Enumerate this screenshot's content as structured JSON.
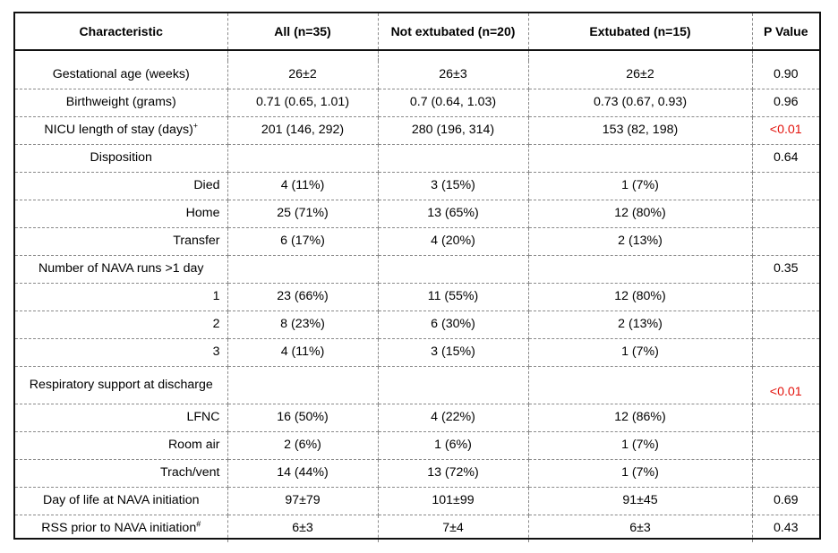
{
  "table": {
    "headers": [
      "Characteristic",
      "All (n=35)",
      "Not extubated (n=20)",
      "Extubated  (n=15)",
      "P Value"
    ],
    "rows": [
      {
        "label": "Gestational age (weeks)",
        "sup": "",
        "sub": false,
        "all": "26±2",
        "not_extubated": "26±3",
        "extubated": "26±2",
        "p": "0.90",
        "sig": false
      },
      {
        "label": "Birthweight (grams)",
        "sup": "",
        "sub": false,
        "all": "0.71 (0.65, 1.01)",
        "not_extubated": "0.7 (0.64, 1.03)",
        "extubated": "0.73 (0.67, 0.93)",
        "p": "0.96",
        "sig": false
      },
      {
        "label": "NICU length of stay (days)",
        "sup": "+",
        "sub": false,
        "all": "201 (146, 292)",
        "not_extubated": "280 (196, 314)",
        "extubated": "153 (82, 198)",
        "p": "<0.01",
        "sig": true
      },
      {
        "label": "Disposition",
        "sup": "",
        "sub": false,
        "all": "",
        "not_extubated": "",
        "extubated": "",
        "p": "0.64",
        "sig": false
      },
      {
        "label": "Died",
        "sup": "",
        "sub": true,
        "all": "4 (11%)",
        "not_extubated": "3 (15%)",
        "extubated": "1 (7%)",
        "p": "",
        "sig": false
      },
      {
        "label": "Home",
        "sup": "",
        "sub": true,
        "all": "25 (71%)",
        "not_extubated": "13 (65%)",
        "extubated": "12 (80%)",
        "p": "",
        "sig": false
      },
      {
        "label": "Transfer",
        "sup": "",
        "sub": true,
        "all": "6 (17%)",
        "not_extubated": "4 (20%)",
        "extubated": "2 (13%)",
        "p": "",
        "sig": false
      },
      {
        "label": "Number of NAVA runs >1 day",
        "sup": "",
        "sub": false,
        "all": "",
        "not_extubated": "",
        "extubated": "",
        "p": "0.35",
        "sig": false
      },
      {
        "label": "1",
        "sup": "",
        "sub": true,
        "all": "23 (66%)",
        "not_extubated": "11 (55%)",
        "extubated": "12 (80%)",
        "p": "",
        "sig": false
      },
      {
        "label": "2",
        "sup": "",
        "sub": true,
        "all": "8 (23%)",
        "not_extubated": "6 (30%)",
        "extubated": "2 (13%)",
        "p": "",
        "sig": false
      },
      {
        "label": "3",
        "sup": "",
        "sub": true,
        "all": "4 (11%)",
        "not_extubated": "3 (15%)",
        "extubated": "1 (7%)",
        "p": "",
        "sig": false
      },
      {
        "label": "Respiratory support at discharge",
        "sup": "",
        "sub": false,
        "tall": true,
        "all": "",
        "not_extubated": "",
        "extubated": "",
        "p": "<0.01",
        "sig": true
      },
      {
        "label": "LFNC",
        "sup": "",
        "sub": true,
        "all": "16 (50%)",
        "not_extubated": "4 (22%)",
        "extubated": "12 (86%)",
        "p": "",
        "sig": false
      },
      {
        "label": "Room air",
        "sup": "",
        "sub": true,
        "all": "2 (6%)",
        "not_extubated": "1 (6%)",
        "extubated": "1 (7%)",
        "p": "",
        "sig": false
      },
      {
        "label": "Trach/vent",
        "sup": "",
        "sub": true,
        "all": "14 (44%)",
        "not_extubated": "13 (72%)",
        "extubated": "1 (7%)",
        "p": "",
        "sig": false
      },
      {
        "label": "Day of life at NAVA initiation",
        "sup": "",
        "sub": false,
        "all": "97±79",
        "not_extubated": "101±99",
        "extubated": "91±45",
        "p": "0.69",
        "sig": false
      },
      {
        "label": "RSS prior to NAVA initiation",
        "sup": "#",
        "sub": false,
        "all": "6±3",
        "not_extubated": "7±4",
        "extubated": "6±3",
        "p": "0.43",
        "sig": false
      }
    ]
  },
  "colors": {
    "significant_p": "#e3120b",
    "border": "#111111",
    "dashed": "#8a8a8a"
  }
}
